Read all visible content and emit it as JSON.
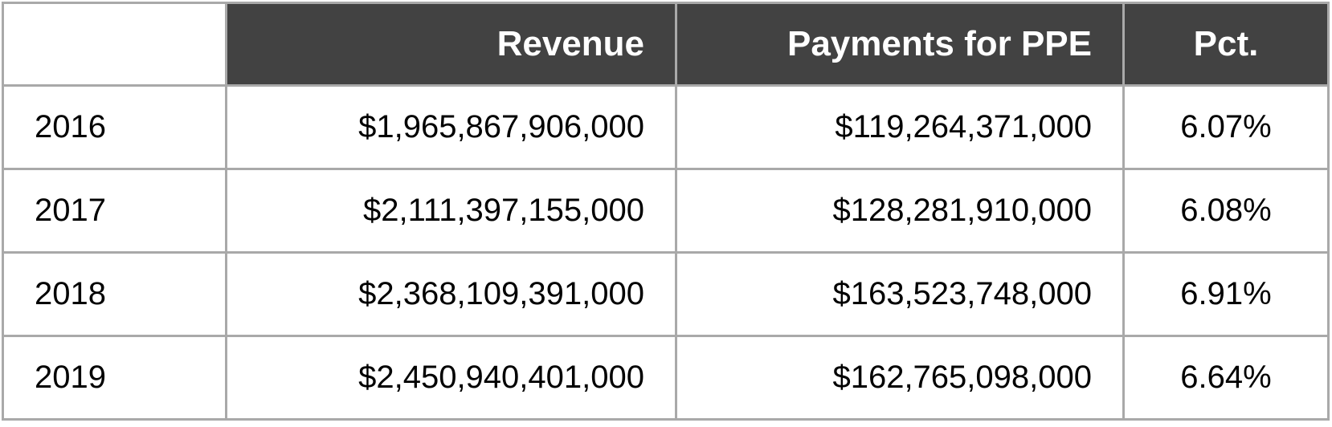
{
  "colors": {
    "header_bg": "#424242",
    "header_text": "#ffffff",
    "border": "#a9a9a9",
    "cell_bg": "#ffffff",
    "cell_text": "#000000"
  },
  "table": {
    "columns": {
      "year": "",
      "revenue": "Revenue",
      "ppe": "Payments for PPE",
      "pct": "Pct."
    },
    "rows": [
      {
        "year": "2016",
        "revenue": "$1,965,867,906,000",
        "ppe": "$119,264,371,000",
        "pct": "6.07%"
      },
      {
        "year": "2017",
        "revenue": "$2,111,397,155,000",
        "ppe": "$128,281,910,000",
        "pct": "6.08%"
      },
      {
        "year": "2018",
        "revenue": "$2,368,109,391,000",
        "ppe": "$163,523,748,000",
        "pct": "6.91%"
      },
      {
        "year": "2019",
        "revenue": "$2,450,940,401,000",
        "ppe": "$162,765,098,000",
        "pct": "6.64%"
      }
    ]
  },
  "chart_data": {
    "type": "table",
    "title": "",
    "columns": [
      "",
      "Revenue",
      "Payments for PPE",
      "Pct."
    ],
    "rows": [
      [
        "2016",
        "$1,965,867,906,000",
        "$119,264,371,000",
        "6.07%"
      ],
      [
        "2017",
        "$2,111,397,155,000",
        "$128,281,910,000",
        "6.08%"
      ],
      [
        "2018",
        "$2,368,109,391,000",
        "$163,523,748,000",
        "6.91%"
      ],
      [
        "2019",
        "$2,450,940,401,000",
        "$162,765,098,000",
        "6.64%"
      ]
    ],
    "revenue_values": [
      1965867906000,
      2111397155000,
      2368109391000,
      2450940401000
    ],
    "ppe_values": [
      119264371000,
      128281910000,
      163523748000,
      162765098000
    ],
    "pct_values": [
      6.07,
      6.08,
      6.91,
      6.64
    ]
  }
}
